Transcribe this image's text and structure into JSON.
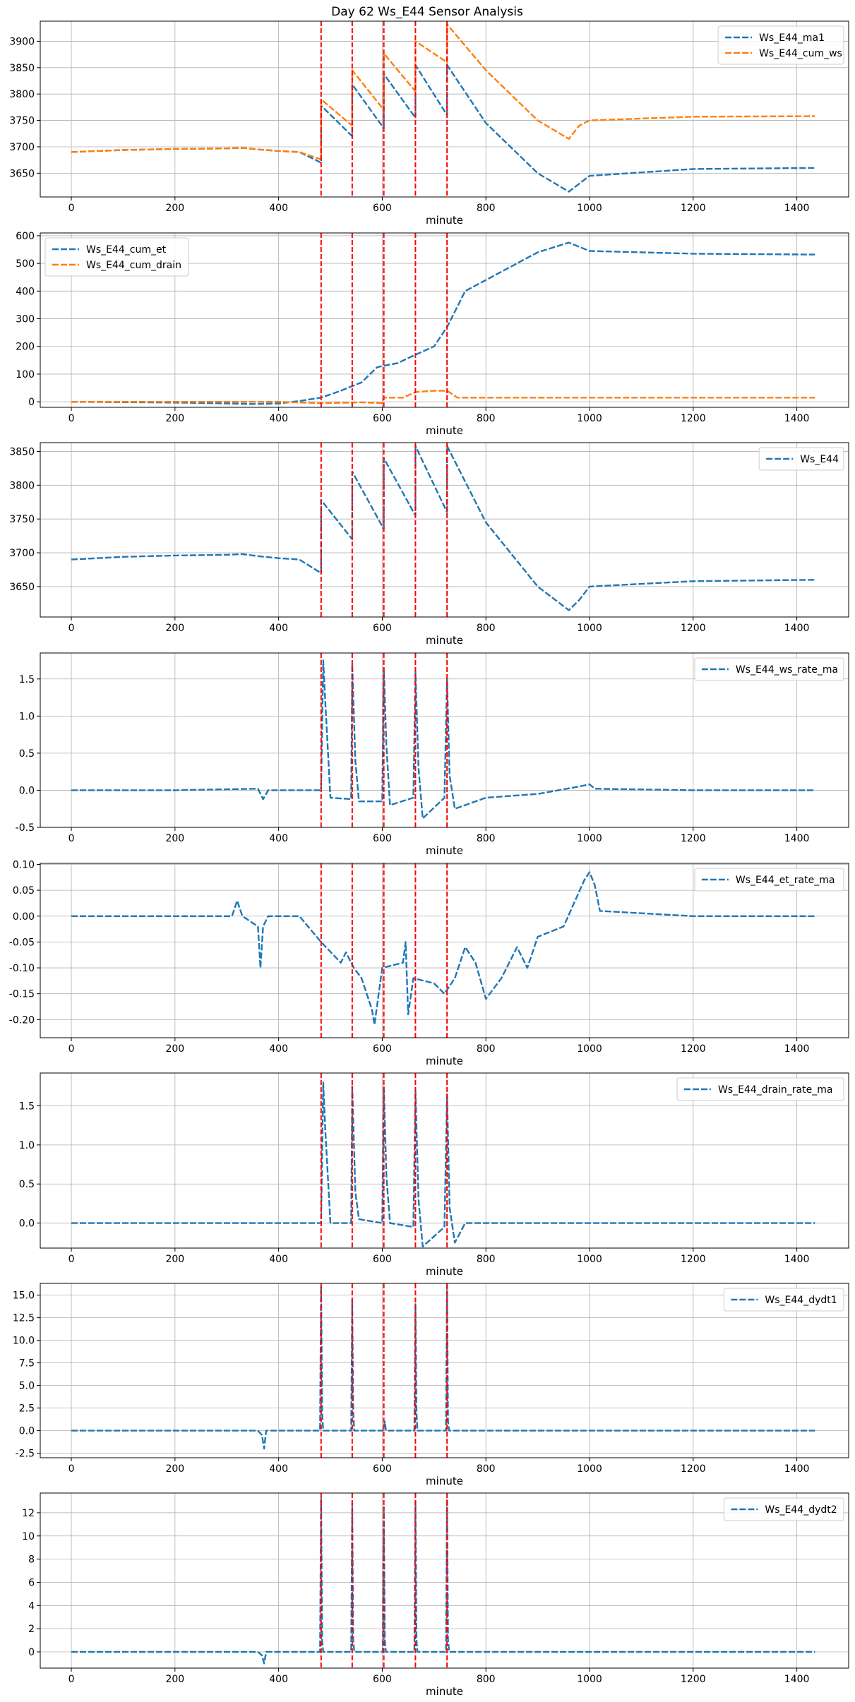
{
  "figure": {
    "title": "Day 62 Ws_E44 Sensor Analysis"
  },
  "chart_data": [
    {
      "type": "line",
      "xlabel": "minute",
      "xlim": [
        -60,
        1500
      ],
      "xticks": [
        0,
        200,
        400,
        600,
        800,
        1000,
        1200,
        1400
      ],
      "ylim": [
        3605,
        3938
      ],
      "yticks": [
        3650,
        3700,
        3750,
        3800,
        3850,
        3900
      ],
      "ytick_labels": [
        "3650",
        "3700",
        "3750",
        "3800",
        "3850",
        "3900"
      ],
      "events": [
        482,
        542,
        603,
        664,
        725
      ],
      "legend": "top-right",
      "grid": true,
      "series": [
        {
          "name": "Ws_E44_ma1",
          "color": "#1f77b4",
          "x": [
            0,
            100,
            200,
            300,
            330,
            360,
            400,
            440,
            482,
            482,
            542,
            542,
            603,
            603,
            664,
            664,
            725,
            725,
            800,
            900,
            960,
            980,
            1000,
            1200,
            1435
          ],
          "y": [
            3690,
            3694,
            3696,
            3697,
            3698,
            3695,
            3692,
            3690,
            3670,
            3778,
            3720,
            3818,
            3735,
            3838,
            3755,
            3855,
            3760,
            3855,
            3745,
            3650,
            3615,
            3630,
            3645,
            3658,
            3660
          ]
        },
        {
          "name": "Ws_E44_cum_ws",
          "color": "#ff7f0e",
          "x": [
            0,
            100,
            200,
            300,
            330,
            360,
            400,
            440,
            482,
            482,
            542,
            542,
            603,
            603,
            664,
            664,
            725,
            725,
            800,
            900,
            960,
            980,
            1000,
            1200,
            1435
          ],
          "y": [
            3690,
            3694,
            3696,
            3697,
            3698,
            3695,
            3692,
            3690,
            3676,
            3790,
            3740,
            3845,
            3770,
            3877,
            3805,
            3900,
            3860,
            3932,
            3845,
            3750,
            3715,
            3740,
            3750,
            3757,
            3758
          ]
        }
      ]
    },
    {
      "type": "line",
      "xlabel": "minute",
      "xlim": [
        -60,
        1500
      ],
      "xticks": [
        0,
        200,
        400,
        600,
        800,
        1000,
        1200,
        1400
      ],
      "ylim": [
        -20,
        610
      ],
      "yticks": [
        0,
        100,
        200,
        300,
        400,
        500,
        600
      ],
      "ytick_labels": [
        "0",
        "100",
        "200",
        "300",
        "400",
        "500",
        "600"
      ],
      "events": [
        482,
        542,
        603,
        664,
        725
      ],
      "legend": "top-left",
      "grid": true,
      "series": [
        {
          "name": "Ws_E44_cum_et",
          "color": "#1f77b4",
          "x": [
            0,
            200,
            300,
            350,
            400,
            440,
            482,
            520,
            560,
            590,
            603,
            630,
            664,
            700,
            725,
            760,
            800,
            900,
            960,
            1000,
            1200,
            1435
          ],
          "y": [
            0,
            -3,
            -6,
            -8,
            -6,
            3,
            15,
            40,
            70,
            125,
            130,
            140,
            170,
            200,
            270,
            400,
            440,
            540,
            575,
            545,
            535,
            532
          ]
        },
        {
          "name": "Ws_E44_cum_drain",
          "color": "#ff7f0e",
          "x": [
            0,
            400,
            482,
            540,
            560,
            600,
            603,
            640,
            664,
            700,
            725,
            745,
            800,
            1435
          ],
          "y": [
            0,
            0,
            -5,
            -3,
            -2,
            -5,
            15,
            15,
            35,
            40,
            40,
            15,
            15,
            15
          ]
        }
      ]
    },
    {
      "type": "line",
      "xlabel": "minute",
      "xlim": [
        -60,
        1500
      ],
      "xticks": [
        0,
        200,
        400,
        600,
        800,
        1000,
        1200,
        1400
      ],
      "ylim": [
        3605,
        3863
      ],
      "yticks": [
        3650,
        3700,
        3750,
        3800,
        3850
      ],
      "ytick_labels": [
        "3650",
        "3700",
        "3750",
        "3800",
        "3850"
      ],
      "events": [
        482,
        542,
        603,
        664,
        725
      ],
      "legend": "top-right",
      "grid": true,
      "series": [
        {
          "name": "Ws_E44",
          "color": "#1f77b4",
          "x": [
            0,
            100,
            200,
            300,
            330,
            360,
            400,
            440,
            482,
            482,
            542,
            542,
            603,
            603,
            664,
            664,
            725,
            725,
            800,
            900,
            960,
            980,
            1000,
            1200,
            1435
          ],
          "y": [
            3690,
            3694,
            3696,
            3697,
            3698,
            3695,
            3692,
            3690,
            3670,
            3778,
            3720,
            3820,
            3735,
            3840,
            3755,
            3858,
            3760,
            3858,
            3745,
            3650,
            3615,
            3630,
            3650,
            3658,
            3660
          ]
        }
      ]
    },
    {
      "type": "line",
      "xlabel": "minute",
      "xlim": [
        -60,
        1500
      ],
      "xticks": [
        0,
        200,
        400,
        600,
        800,
        1000,
        1200,
        1400
      ],
      "ylim": [
        -0.5,
        1.85
      ],
      "yticks": [
        -0.5,
        0.0,
        0.5,
        1.0,
        1.5
      ],
      "ytick_labels": [
        "-0.5",
        "0.0",
        "0.5",
        "1.0",
        "1.5"
      ],
      "events": [
        482,
        542,
        603,
        664,
        725
      ],
      "legend": "top-right",
      "grid": true,
      "series": [
        {
          "name": "Ws_E44_ws_rate_ma",
          "color": "#1f77b4",
          "x": [
            0,
            200,
            360,
            370,
            380,
            482,
            486,
            490,
            500,
            540,
            542,
            548,
            555,
            600,
            603,
            608,
            615,
            660,
            664,
            670,
            678,
            720,
            725,
            730,
            740,
            800,
            900,
            980,
            1000,
            1010,
            1200,
            1435
          ],
          "y": [
            0,
            0,
            0.02,
            -0.12,
            0,
            0,
            1.75,
            1.2,
            -0.1,
            -0.12,
            1.7,
            0.4,
            -0.15,
            -0.15,
            1.65,
            0.6,
            -0.2,
            -0.1,
            1.6,
            0.3,
            -0.38,
            -0.1,
            1.5,
            0.2,
            -0.25,
            -0.1,
            -0.05,
            0.05,
            0.08,
            0.02,
            0,
            0
          ]
        }
      ]
    },
    {
      "type": "line",
      "xlabel": "minute",
      "xlim": [
        -60,
        1500
      ],
      "xticks": [
        0,
        200,
        400,
        600,
        800,
        1000,
        1200,
        1400
      ],
      "ylim": [
        -0.235,
        0.102
      ],
      "yticks": [
        -0.2,
        -0.15,
        -0.1,
        -0.05,
        0.0,
        0.05,
        0.1
      ],
      "ytick_labels": [
        "-0.20",
        "-0.15",
        "-0.10",
        "-0.05",
        "0.00",
        "0.05",
        "0.10"
      ],
      "events": [
        482,
        542,
        603,
        664,
        725
      ],
      "legend": "top-right",
      "grid": true,
      "series": [
        {
          "name": "Ws_E44_et_rate_ma",
          "color": "#1f77b4",
          "x": [
            0,
            200,
            310,
            320,
            330,
            360,
            365,
            370,
            380,
            440,
            482,
            520,
            530,
            545,
            560,
            580,
            585,
            600,
            640,
            645,
            650,
            660,
            700,
            720,
            740,
            760,
            780,
            800,
            830,
            860,
            880,
            900,
            950,
            990,
            1000,
            1010,
            1020,
            1200,
            1435
          ],
          "y": [
            0,
            0,
            0,
            0.03,
            0,
            -0.02,
            -0.1,
            -0.02,
            0,
            0,
            -0.05,
            -0.09,
            -0.07,
            -0.1,
            -0.12,
            -0.18,
            -0.21,
            -0.1,
            -0.09,
            -0.05,
            -0.19,
            -0.12,
            -0.13,
            -0.15,
            -0.12,
            -0.06,
            -0.09,
            -0.16,
            -0.12,
            -0.06,
            -0.1,
            -0.04,
            -0.02,
            0.07,
            0.085,
            0.06,
            0.01,
            0,
            0
          ]
        }
      ]
    },
    {
      "type": "line",
      "xlabel": "minute",
      "xlim": [
        -60,
        1500
      ],
      "xticks": [
        0,
        200,
        400,
        600,
        800,
        1000,
        1200,
        1400
      ],
      "ylim": [
        -0.32,
        1.92
      ],
      "yticks": [
        0.0,
        0.5,
        1.0,
        1.5
      ],
      "ytick_labels": [
        "0.0",
        "0.5",
        "1.0",
        "1.5"
      ],
      "events": [
        482,
        542,
        603,
        664,
        725
      ],
      "legend": "top-right",
      "grid": true,
      "series": [
        {
          "name": "Ws_E44_drain_rate_ma",
          "color": "#1f77b4",
          "x": [
            0,
            480,
            482,
            486,
            490,
            500,
            540,
            542,
            548,
            555,
            600,
            603,
            608,
            615,
            660,
            664,
            670,
            678,
            720,
            725,
            730,
            740,
            760,
            1435
          ],
          "y": [
            0,
            0,
            0,
            1.8,
            1.2,
            0,
            0,
            1.75,
            0.4,
            0.05,
            0,
            1.75,
            0.6,
            0,
            -0.05,
            1.7,
            0.3,
            -0.3,
            -0.05,
            1.65,
            0.2,
            -0.25,
            0,
            0
          ]
        }
      ]
    },
    {
      "type": "line",
      "xlabel": "minute",
      "xlim": [
        -60,
        1500
      ],
      "xticks": [
        0,
        200,
        400,
        600,
        800,
        1000,
        1200,
        1400
      ],
      "ylim": [
        -3.0,
        16.3
      ],
      "yticks": [
        -2.5,
        0.0,
        2.5,
        5.0,
        7.5,
        10.0,
        12.5,
        15.0
      ],
      "ytick_labels": [
        "-2.5",
        "0.0",
        "2.5",
        "5.0",
        "7.5",
        "10.0",
        "12.5",
        "15.0"
      ],
      "events": [
        482,
        542,
        603,
        664,
        725
      ],
      "legend": "top-right",
      "grid": true,
      "series": [
        {
          "name": "Ws_E44_dydt1",
          "color": "#1f77b4",
          "x": [
            0,
            360,
            368,
            372,
            376,
            480,
            482,
            484,
            486,
            540,
            542,
            544,
            546,
            601,
            603,
            605,
            607,
            662,
            664,
            666,
            668,
            723,
            725,
            727,
            729,
            800,
            1000,
            1435
          ],
          "y": [
            0,
            0,
            -0.5,
            -2.0,
            0,
            0,
            16,
            2,
            0,
            0,
            14.5,
            2,
            0,
            0,
            0.5,
            1,
            0,
            0,
            14,
            2,
            0,
            0,
            16,
            1,
            0,
            0,
            0,
            0
          ]
        }
      ]
    },
    {
      "type": "line",
      "xlabel": "minute",
      "xlim": [
        -60,
        1500
      ],
      "xticks": [
        0,
        200,
        400,
        600,
        800,
        1000,
        1200,
        1400
      ],
      "ylim": [
        -1.4,
        13.7
      ],
      "yticks": [
        0,
        2,
        4,
        6,
        8,
        10,
        12
      ],
      "ytick_labels": [
        "0",
        "2",
        "4",
        "6",
        "8",
        "10",
        "12"
      ],
      "events": [
        482,
        542,
        603,
        664,
        725
      ],
      "legend": "top-right",
      "grid": true,
      "series": [
        {
          "name": "Ws_E44_dydt2",
          "color": "#1f77b4",
          "x": [
            0,
            360,
            368,
            372,
            376,
            480,
            482,
            484,
            486,
            540,
            542,
            544,
            546,
            601,
            603,
            605,
            607,
            662,
            664,
            666,
            668,
            723,
            725,
            727,
            729,
            1000,
            1435
          ],
          "y": [
            0,
            0,
            -0.3,
            -1.0,
            0,
            0,
            13.2,
            1,
            0,
            0,
            12.8,
            1,
            0,
            0,
            12.5,
            1,
            0,
            0,
            13.0,
            1,
            0,
            0,
            13.2,
            1,
            0,
            0,
            0
          ]
        }
      ]
    }
  ]
}
